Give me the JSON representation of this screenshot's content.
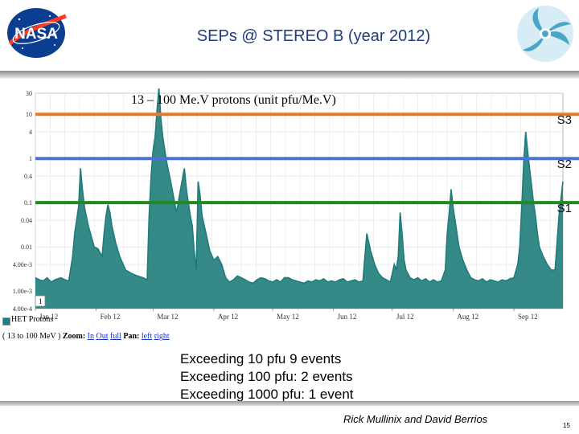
{
  "slide": {
    "title": "SEPs @ STEREO B (year 2012)",
    "credit": "Rick Mullinix and David Berrios",
    "page_number": "15",
    "logo_left_text": "NASA",
    "stats": [
      "Exceeding 10 pfu  9 events",
      "Exceeding 100 pfu: 2 events",
      "Exceeding 1000 pfu: 1 event"
    ]
  },
  "legend": {
    "series_label": "HET Protons",
    "channel_label": "( 13 to 100 MeV )",
    "zoom_label": "Zoom:",
    "zoom_links": [
      "In",
      "Out",
      "full"
    ],
    "pan_label": "Pan:",
    "pan_links": [
      "left",
      "right"
    ],
    "range_marker": "1"
  },
  "chart_data": {
    "type": "line",
    "title": "",
    "subtitle": "13 – 100 Me.V protons (unit pfu/Me.V)",
    "xlabel": "",
    "ylabel": "",
    "yscale": "log",
    "ylim": [
      0.0004,
      30
    ],
    "xlim": [
      1,
      270
    ],
    "y_ticks": [
      {
        "value": 30,
        "label": "30"
      },
      {
        "value": 10,
        "label": "10"
      },
      {
        "value": 4,
        "label": "4"
      },
      {
        "value": 1,
        "label": "1"
      },
      {
        "value": 0.4,
        "label": "0.4"
      },
      {
        "value": 0.1,
        "label": "0.1"
      },
      {
        "value": 0.04,
        "label": "0.04"
      },
      {
        "value": 0.01,
        "label": "0.01"
      },
      {
        "value": 0.004,
        "label": "4.00e-3"
      },
      {
        "value": 0.001,
        "label": "1.00e-3"
      },
      {
        "value": 0.0004,
        "label": "4.00e-4"
      }
    ],
    "x_ticks": [
      {
        "value": 1,
        "label": "Jan 12"
      },
      {
        "value": 32,
        "label": "Feb 12"
      },
      {
        "value": 61,
        "label": "Mar 12"
      },
      {
        "value": 92,
        "label": "Apr 12"
      },
      {
        "value": 122,
        "label": "May 12"
      },
      {
        "value": 153,
        "label": "Jun 12"
      },
      {
        "value": 183,
        "label": "Jul 12"
      },
      {
        "value": 214,
        "label": "Aug 12"
      },
      {
        "value": 245,
        "label": "Sep 12"
      }
    ],
    "grid": true,
    "thresholds": [
      {
        "name": "S3",
        "value": 10,
        "color": "#e8782a"
      },
      {
        "name": "S2",
        "value": 1,
        "color": "#4a72d8"
      },
      {
        "name": "S1",
        "value": 0.1,
        "color": "#1f8a1f"
      }
    ],
    "series": [
      {
        "name": "HET Protons",
        "color": "#1f7c7a",
        "x": [
          1,
          3,
          5,
          7,
          9,
          11,
          14,
          16,
          18,
          20,
          21,
          23,
          24,
          25,
          26,
          28,
          31,
          33,
          35,
          36,
          37,
          38,
          39,
          40,
          42,
          44,
          47,
          50,
          53,
          56,
          58,
          59,
          60,
          61,
          62,
          63,
          64,
          65,
          66,
          68,
          70,
          72,
          73,
          75,
          77,
          78,
          79,
          80,
          81,
          82,
          83,
          84,
          85,
          86,
          88,
          90,
          92,
          94,
          96,
          98,
          100,
          102,
          104,
          106,
          108,
          110,
          112,
          114,
          116,
          118,
          120,
          122,
          124,
          126,
          128,
          130,
          132,
          134,
          136,
          138,
          140,
          142,
          144,
          146,
          148,
          150,
          152,
          154,
          156,
          158,
          160,
          162,
          164,
          166,
          168,
          170,
          172,
          174,
          176,
          178,
          180,
          182,
          184,
          185,
          186,
          187,
          188,
          189,
          190,
          192,
          194,
          196,
          198,
          200,
          202,
          204,
          206,
          208,
          210,
          211,
          212,
          213,
          214,
          215,
          216,
          217,
          218,
          219,
          221,
          223,
          225,
          227,
          229,
          231,
          233,
          235,
          237,
          239,
          241,
          243,
          245,
          247,
          248,
          249,
          250,
          251,
          252,
          253,
          254,
          255,
          256,
          257,
          258,
          260,
          262,
          264,
          266,
          268,
          270
        ],
        "y": [
          0.002,
          0.0018,
          0.0017,
          0.002,
          0.0016,
          0.0018,
          0.002,
          0.0018,
          0.0017,
          0.006,
          0.02,
          0.08,
          0.6,
          0.2,
          0.08,
          0.03,
          0.01,
          0.009,
          0.006,
          0.02,
          0.05,
          0.09,
          0.06,
          0.03,
          0.012,
          0.006,
          0.003,
          0.0025,
          0.0022,
          0.002,
          0.0018,
          0.05,
          0.4,
          1.5,
          3,
          12,
          40,
          8,
          3,
          0.8,
          0.3,
          0.1,
          0.06,
          0.2,
          0.6,
          0.2,
          0.1,
          0.05,
          0.03,
          0.008,
          0.003,
          0.3,
          0.15,
          0.05,
          0.02,
          0.008,
          0.005,
          0.006,
          0.004,
          0.002,
          0.0016,
          0.0018,
          0.0022,
          0.002,
          0.0018,
          0.0016,
          0.0015,
          0.0018,
          0.002,
          0.0019,
          0.0017,
          0.0016,
          0.0018,
          0.0016,
          0.002,
          0.002,
          0.0018,
          0.0017,
          0.0016,
          0.0015,
          0.0017,
          0.0016,
          0.0018,
          0.0017,
          0.0019,
          0.0016,
          0.0017,
          0.0016,
          0.0018,
          0.0019,
          0.0016,
          0.0017,
          0.0018,
          0.0016,
          0.0017,
          0.02,
          0.008,
          0.004,
          0.0025,
          0.002,
          0.0018,
          0.0016,
          0.004,
          0.003,
          0.006,
          0.06,
          0.02,
          0.005,
          0.003,
          0.002,
          0.0018,
          0.002,
          0.0017,
          0.0019,
          0.0016,
          0.0018,
          0.0016,
          0.0017,
          0.003,
          0.02,
          0.06,
          0.2,
          0.08,
          0.04,
          0.02,
          0.01,
          0.007,
          0.005,
          0.003,
          0.002,
          0.0018,
          0.0017,
          0.0019,
          0.0016,
          0.0018,
          0.0017,
          0.0016,
          0.0018,
          0.0017,
          0.0019,
          0.002,
          0.004,
          0.01,
          0.08,
          0.8,
          4,
          1.5,
          0.6,
          0.25,
          0.1,
          0.05,
          0.02,
          0.01,
          0.006,
          0.004,
          0.003,
          0.003,
          0.05,
          0.3
        ]
      }
    ]
  }
}
